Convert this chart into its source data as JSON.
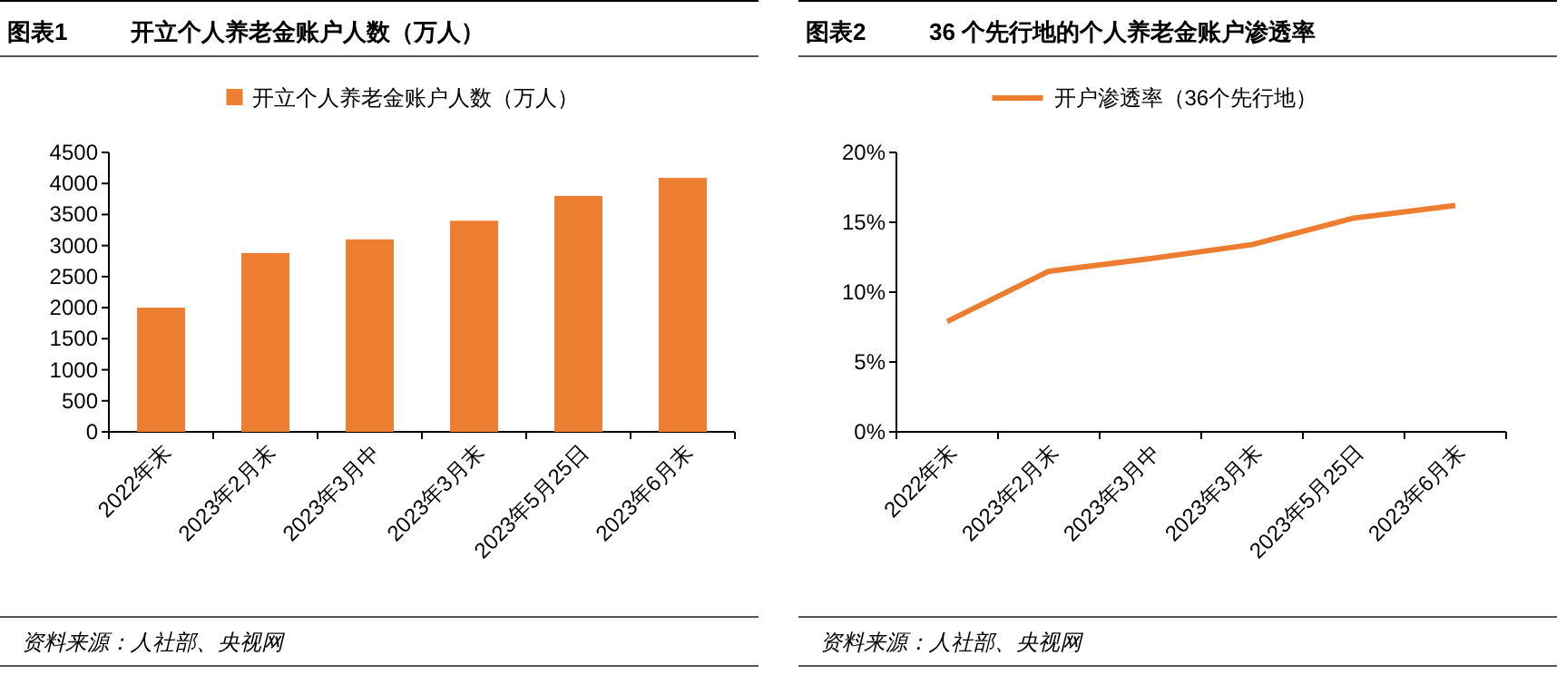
{
  "chart_data": [
    {
      "type": "bar",
      "title": "图表1",
      "subtitle": "开立个人养老金账户人数（万人）",
      "categories": [
        "2022年末",
        "2023年2月末",
        "2023年3月中",
        "2023年3月末",
        "2023年5月25日",
        "2023年6月末"
      ],
      "series": [
        {
          "name": "开立个人养老金账户人数（万人）",
          "color": "#ed7d31",
          "values": [
            2000,
            2880,
            3100,
            3400,
            3800,
            4090
          ]
        }
      ],
      "ylim": [
        0,
        4500
      ],
      "yticks": [
        0,
        500,
        1000,
        1500,
        2000,
        2500,
        3000,
        3500,
        4000,
        4500
      ],
      "grid": false,
      "legend": "top",
      "annotations": [
        "资料来源：人社部、央视网"
      ]
    },
    {
      "type": "line",
      "title": "图表2",
      "subtitle": "36 个先行地的个人养老金账户渗透率",
      "categories": [
        "2022年末",
        "2023年2月末",
        "2023年3月中",
        "2023年3月末",
        "2023年5月25日",
        "2023年6月末"
      ],
      "series": [
        {
          "name": "开户渗透率（36个先行地）",
          "color": "#ed7d31",
          "values": [
            7.9,
            11.5,
            12.4,
            13.4,
            15.3,
            16.2
          ]
        }
      ],
      "ylim": [
        0,
        20
      ],
      "yticks": [
        {
          "value": 0,
          "label": "0%"
        },
        {
          "value": 5,
          "label": "5%"
        },
        {
          "value": 10,
          "label": "10%"
        },
        {
          "value": 15,
          "label": "15%"
        },
        {
          "value": 20,
          "label": "20%"
        }
      ],
      "grid": false,
      "legend": "top",
      "marker": "none",
      "line_style": "solid",
      "annotations": [
        "资料来源：人社部、央视网"
      ]
    }
  ]
}
